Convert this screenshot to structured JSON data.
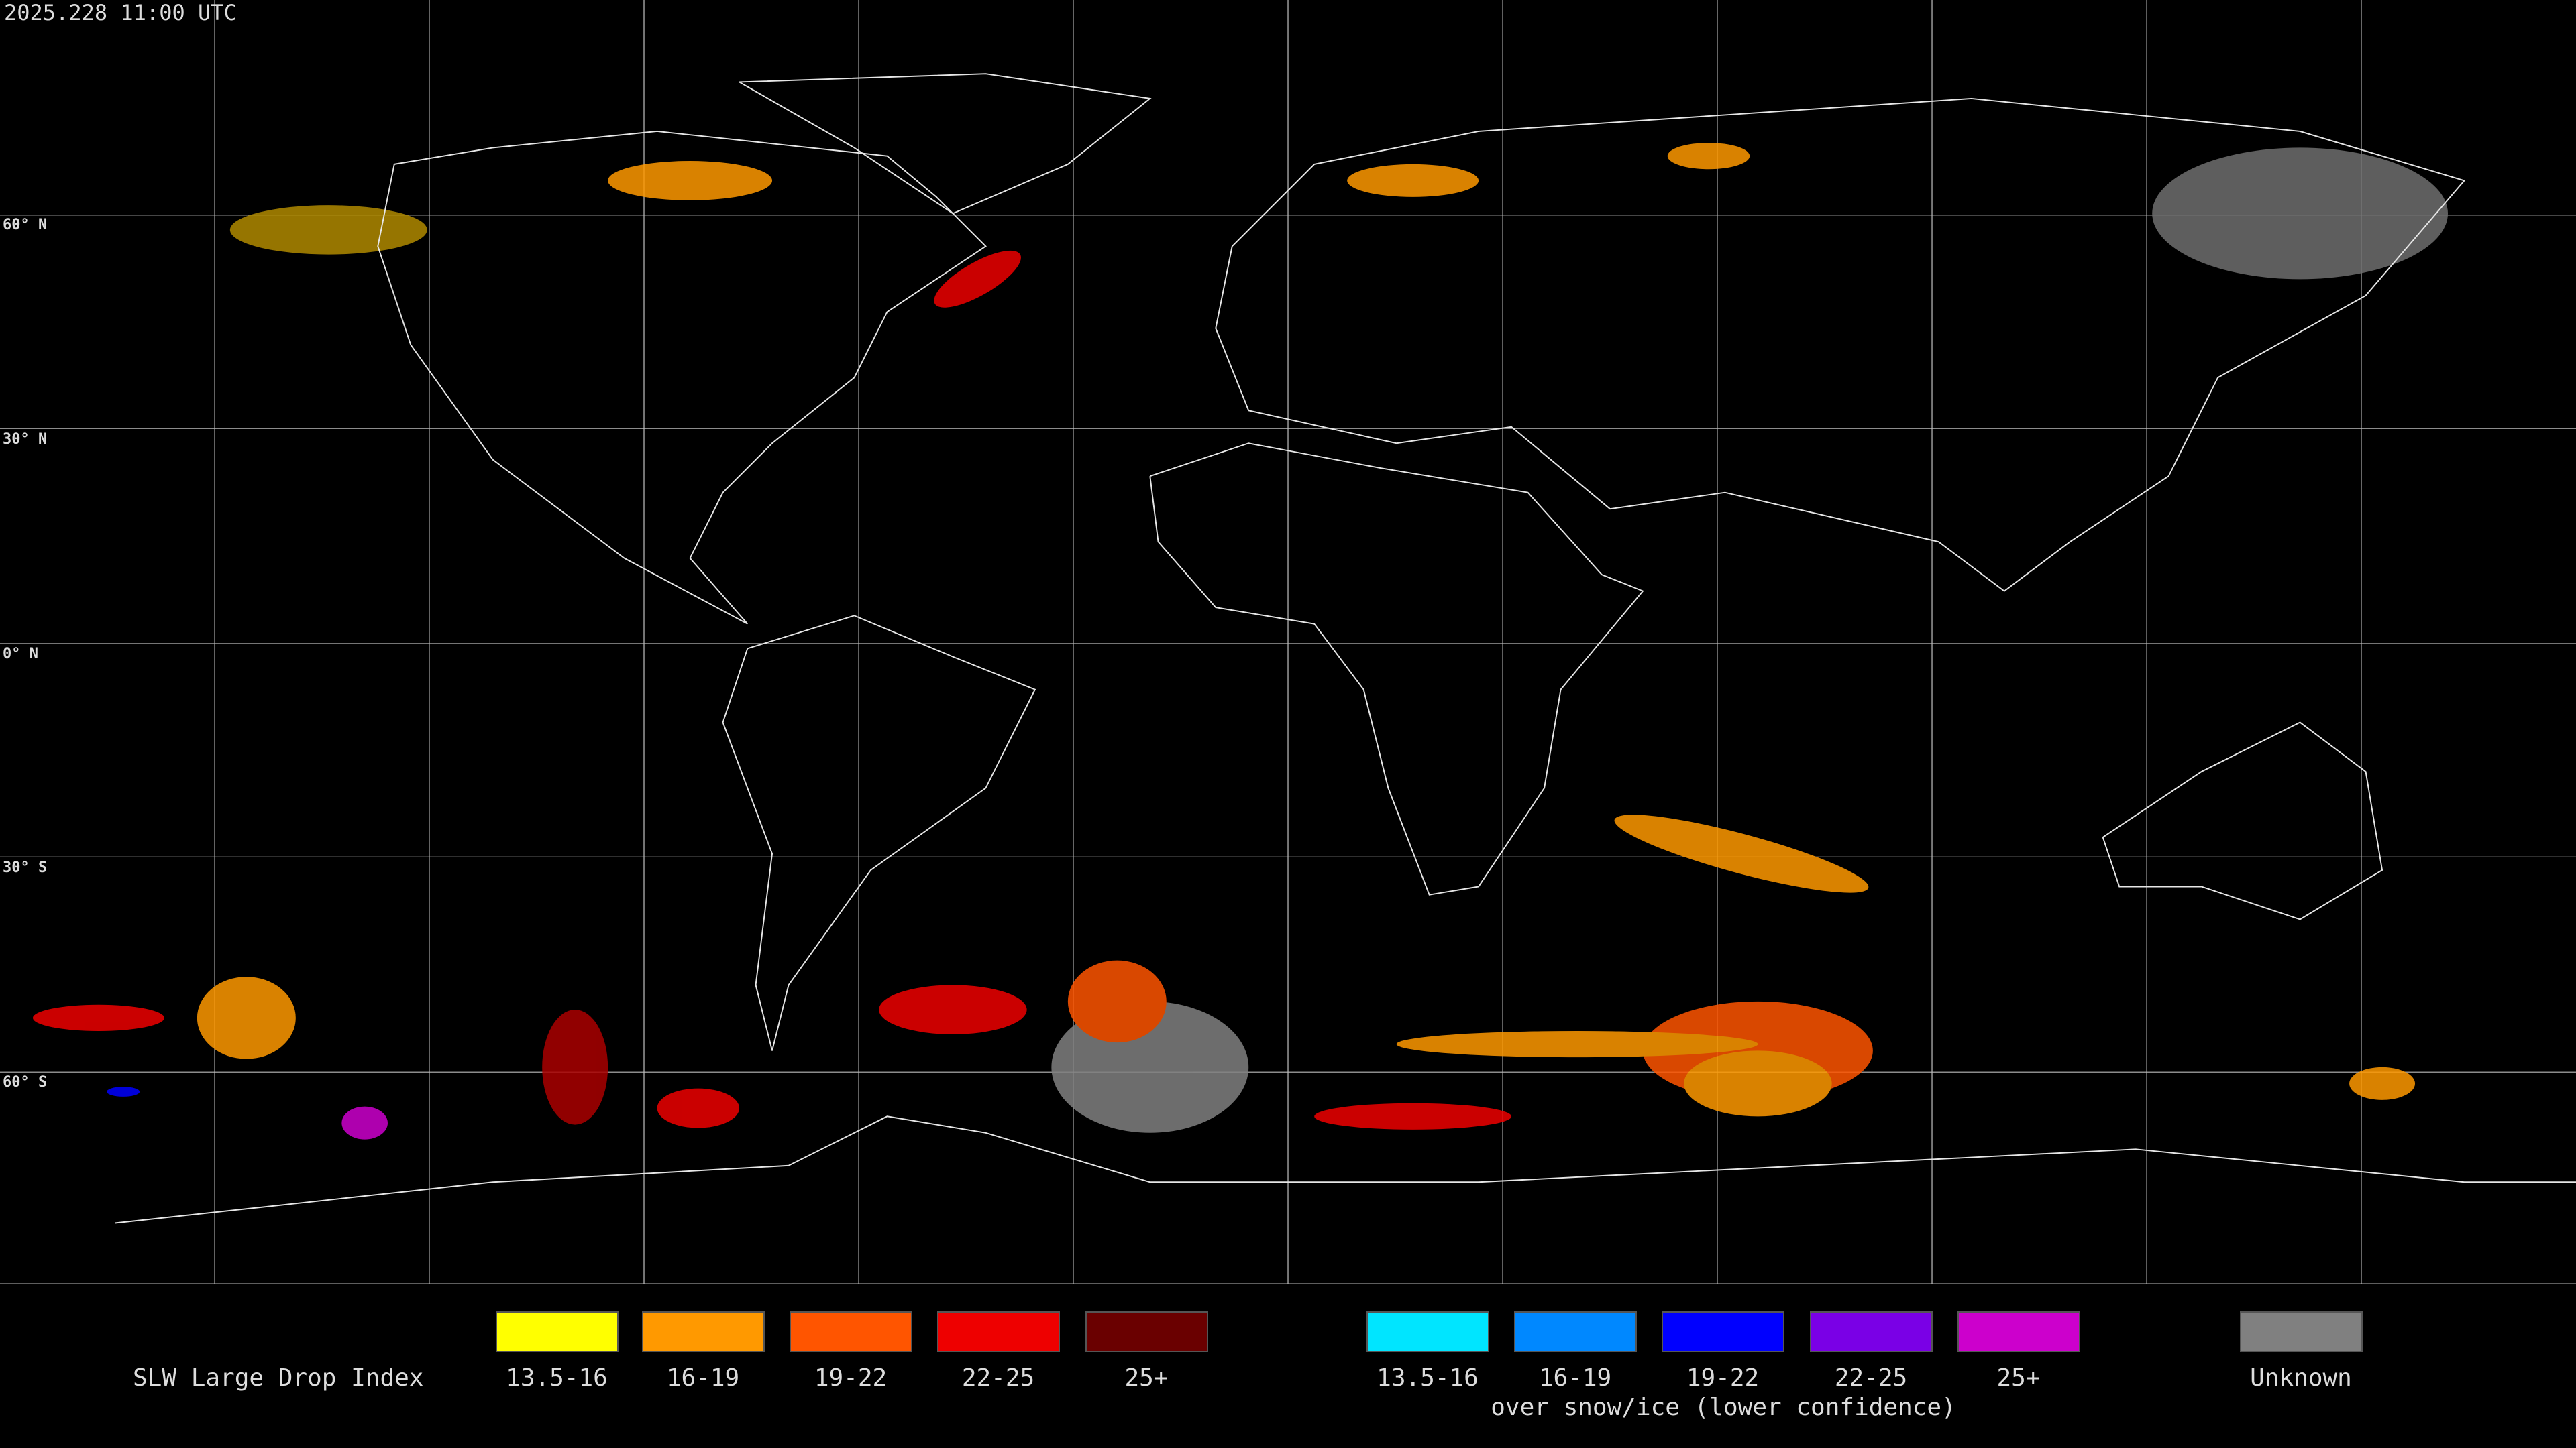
{
  "header": {
    "timestamp": "2025.228 11:00 UTC"
  },
  "map": {
    "latitude_labels": [
      "60° N",
      "30° N",
      "0° N",
      "30° S",
      "60° S"
    ]
  },
  "legend": {
    "title": "SLW Large Drop Index",
    "groups": [
      {
        "items": [
          {
            "label": "13.5-16",
            "color": "#ffff00"
          },
          {
            "label": "16-19",
            "color": "#ff9900"
          },
          {
            "label": "19-22",
            "color": "#ff5500"
          },
          {
            "label": "22-25",
            "color": "#ee0000"
          },
          {
            "label": "25+",
            "color": "#6a0000"
          }
        ]
      },
      {
        "items": [
          {
            "label": "13.5-16",
            "color": "#00e5ff"
          },
          {
            "label": "16-19",
            "color": "#0088ff"
          },
          {
            "label": "19-22",
            "color": "#0000ff"
          },
          {
            "label": "22-25",
            "color": "#7a00e6"
          },
          {
            "label": "25+",
            "color": "#cc00cc"
          }
        ],
        "caption": "over snow/ice (lower confidence)"
      },
      {
        "items": [
          {
            "label": "Unknown",
            "color": "#808080"
          }
        ]
      }
    ]
  }
}
